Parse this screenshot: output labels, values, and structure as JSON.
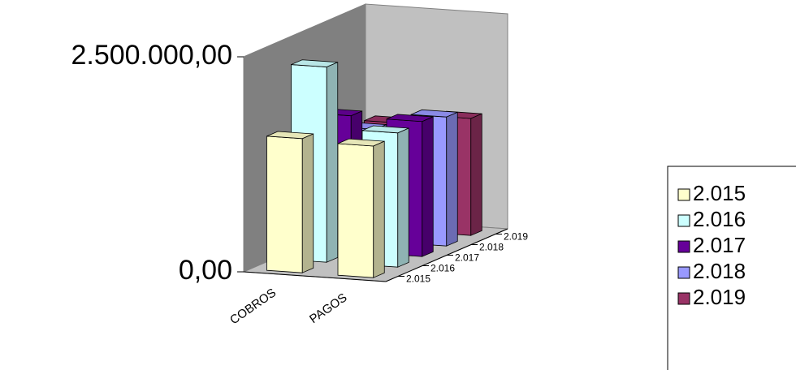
{
  "chart_data": {
    "type": "bar3d",
    "categories": [
      "COBROS",
      "PAGOS"
    ],
    "series": [
      {
        "name": "2.015",
        "color": "#FFFFCC",
        "values": [
          1560000,
          1530000
        ]
      },
      {
        "name": "2.016",
        "color": "#CCFFFF",
        "values": [
          2270000,
          1560000
        ]
      },
      {
        "name": "2.017",
        "color": "#660099",
        "values": [
          1580000,
          1570000
        ]
      },
      {
        "name": "2.018",
        "color": "#9999FF",
        "values": [
          1300000,
          1500000
        ]
      },
      {
        "name": "2.019",
        "color": "#993366",
        "values": [
          1250000,
          1360000
        ]
      }
    ],
    "ylim": [
      0,
      2500000
    ],
    "yticks": [
      {
        "value": 0,
        "label": "0,00"
      },
      {
        "value": 2500000,
        "label": "2.500.000,00"
      }
    ],
    "legend": "right"
  }
}
